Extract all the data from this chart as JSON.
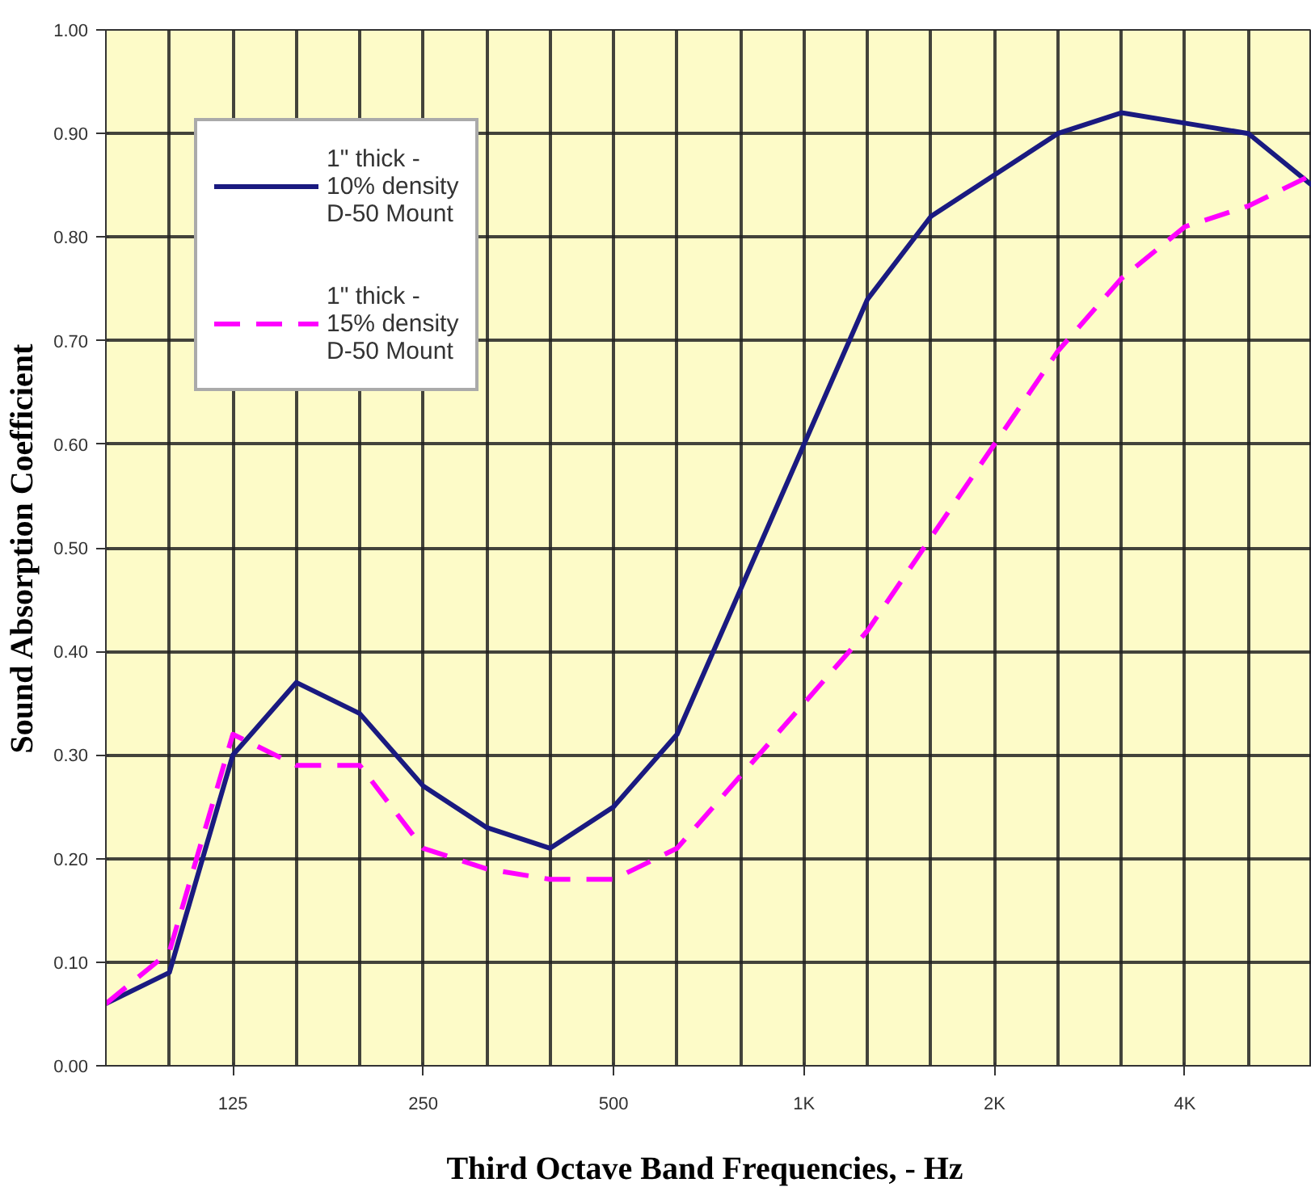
{
  "chart_data": {
    "type": "line",
    "xlabel": "Third Octave Band  Frequencies, - Hz",
    "ylabel": "Sound Absorption Coefficient",
    "categories": [
      null,
      null,
      "125",
      null,
      null,
      "250",
      null,
      null,
      "500",
      null,
      null,
      "1K",
      null,
      null,
      "2K",
      null,
      null,
      "4K",
      null,
      null
    ],
    "series": [
      {
        "name": "1\" thick -\n10% density\nD-50 Mount",
        "color": "#1a1a80",
        "line_style": "solid",
        "values": [
          0.06,
          0.09,
          0.3,
          0.37,
          0.34,
          0.27,
          0.23,
          0.21,
          0.25,
          0.32,
          0.46,
          0.6,
          0.74,
          0.82,
          0.86,
          0.9,
          0.92,
          0.91,
          0.9,
          0.85
        ]
      },
      {
        "name": "1\" thick -\n15% density\nD-50 Mount",
        "color": "#ff00ff",
        "line_style": "dashed",
        "values": [
          0.06,
          0.11,
          0.32,
          0.29,
          0.29,
          0.21,
          0.19,
          0.18,
          0.18,
          0.21,
          0.28,
          0.35,
          0.42,
          0.51,
          0.6,
          0.69,
          0.76,
          0.81,
          0.83,
          0.86
        ]
      }
    ],
    "ylim": [
      0,
      1
    ],
    "yticks": [
      {
        "value": 0,
        "label": "0.00"
      },
      {
        "value": 0.1,
        "label": "0.10"
      },
      {
        "value": 0.2,
        "label": "0.20"
      },
      {
        "value": 0.3,
        "label": "0.30"
      },
      {
        "value": 0.4,
        "label": "0.40"
      },
      {
        "value": 0.5,
        "label": "0.50"
      },
      {
        "value": 0.6,
        "label": "0.60"
      },
      {
        "value": 0.7,
        "label": "0.70"
      },
      {
        "value": 0.8,
        "label": "0.80"
      },
      {
        "value": 0.9,
        "label": "0.90"
      },
      {
        "value": 1,
        "label": "1.00"
      }
    ],
    "grid": true,
    "legend": "top left"
  }
}
